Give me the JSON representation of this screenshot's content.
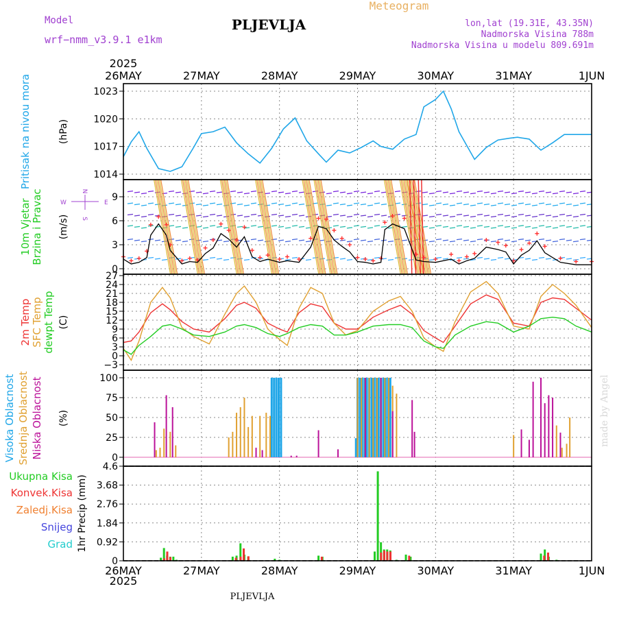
{
  "header": {
    "model_label": "Model",
    "model_name": "wrf−nmm_v3.9.1  e1km",
    "station": "PLJEVLJA",
    "product": "Meteogram",
    "lonlat": "lon,lat (19.31E, 43.35N)",
    "altitude": "Nadmorska Visina 788m",
    "model_altitude": "Nadmorska Visina u modelu 809.691m",
    "footer_station": "PLJEVLJA",
    "credit": "made by Angel",
    "year_top": "2025",
    "year_bottom": "2025"
  },
  "colors": {
    "pressure": "#1fa6e8",
    "wind": "#000000",
    "gust": "#ff3333",
    "t2m": "#ee3333",
    "sfc": "#e0a030",
    "dewpt": "#22cc22",
    "cloud_high": "#1fa6e8",
    "cloud_mid": "#e0a030",
    "cloud_low": "#bb1199",
    "precip": "#22cc22",
    "conv": "#ee3333",
    "grid": "#888888",
    "header_purple": "#a040d0",
    "header_gold": "#e8b060"
  },
  "chart_data": [
    {
      "type": "line",
      "name": "pressure",
      "ylabels": [
        "Pritisak na nivou mora"
      ],
      "unit": "(hPa)",
      "ylim": [
        1014,
        1024
      ],
      "ticks": [
        1014,
        1017,
        1020,
        1023
      ],
      "x_day": [
        0,
        0.1,
        0.2,
        0.3,
        0.45,
        0.6,
        0.75,
        0.9,
        1.0,
        1.15,
        1.3,
        1.45,
        1.6,
        1.75,
        1.9,
        2.05,
        2.2,
        2.35,
        2.5,
        2.6,
        2.75,
        2.9,
        3.05,
        3.2,
        3.3,
        3.45,
        3.6,
        3.75,
        3.85,
        4.0,
        4.1,
        4.2,
        4.3,
        4.5,
        4.65,
        4.8,
        4.95,
        5.05,
        5.2,
        5.35,
        5.5,
        5.65,
        5.8,
        6.0
      ],
      "series": [
        {
          "values": [
            1015.9,
            1017.5,
            1018.6,
            1016.8,
            1014.6,
            1014.3,
            1014.8,
            1016.9,
            1018.4,
            1018.6,
            1019.1,
            1017.4,
            1016.2,
            1015.2,
            1016.8,
            1018.9,
            1020.1,
            1017.6,
            1016.2,
            1015.3,
            1016.6,
            1016.3,
            1016.9,
            1017.6,
            1017.0,
            1016.7,
            1017.8,
            1018.3,
            1021.3,
            1022.1,
            1023.0,
            1021.1,
            1018.6,
            1015.6,
            1016.9,
            1017.7,
            1017.9,
            1018.0,
            1017.8,
            1016.6,
            1017.4,
            1018.3,
            1018.3,
            1018.3
          ]
        }
      ]
    },
    {
      "type": "line",
      "name": "wind",
      "ylabels": [
        "10m Vjetar",
        "Brzina i Pravac"
      ],
      "unit": "(m/s)",
      "ylim": [
        -0.6,
        11.3
      ],
      "ticks": [
        0,
        3,
        6,
        9
      ],
      "compass": [
        "W",
        "E",
        "N",
        "S"
      ],
      "x_day": [
        0,
        0.1,
        0.2,
        0.3,
        0.35,
        0.45,
        0.55,
        0.6,
        0.75,
        0.85,
        0.95,
        1.05,
        1.15,
        1.25,
        1.35,
        1.45,
        1.55,
        1.65,
        1.75,
        1.85,
        2.0,
        2.1,
        2.25,
        2.4,
        2.5,
        2.6,
        2.7,
        2.8,
        2.9,
        3.0,
        3.1,
        3.2,
        3.3,
        3.35,
        3.45,
        3.6,
        3.75,
        3.85,
        4.0,
        4.2,
        4.3,
        4.4,
        4.5,
        4.65,
        4.8,
        4.9,
        5.0,
        5.1,
        5.2,
        5.3,
        5.4,
        5.6,
        5.8,
        6.0
      ],
      "series": [
        {
          "name": "wind",
          "values": [
            1.2,
            0.6,
            0.8,
            1.4,
            4.2,
            5.6,
            4.2,
            2.3,
            0.6,
            0.9,
            0.8,
            1.9,
            2.6,
            4.4,
            3.7,
            2.7,
            4.0,
            1.5,
            0.9,
            1.2,
            0.8,
            1.0,
            0.8,
            2.7,
            5.3,
            5.0,
            3.6,
            2.8,
            2.1,
            0.9,
            0.8,
            0.6,
            0.8,
            4.9,
            5.6,
            5.0,
            1.1,
            0.9,
            0.8,
            1.2,
            0.6,
            1.0,
            1.3,
            2.7,
            2.4,
            2.1,
            0.6,
            1.7,
            2.3,
            3.5,
            2.0,
            0.8,
            0.5,
            0.5
          ]
        },
        {
          "name": "gust",
          "values": [
            1.5,
            1.0,
            1.3,
            2.2,
            5.5,
            6.5,
            5.5,
            3.0,
            1.0,
            1.3,
            1.1,
            2.6,
            3.6,
            5.6,
            4.8,
            3.6,
            5.2,
            2.3,
            1.4,
            1.7,
            1.2,
            1.5,
            1.2,
            3.8,
            6.3,
            6.2,
            4.8,
            3.8,
            3.0,
            1.4,
            1.2,
            1.0,
            1.3,
            5.8,
            6.6,
            6.3,
            1.8,
            1.4,
            1.2,
            1.8,
            1.0,
            1.5,
            1.9,
            3.6,
            3.3,
            2.9,
            1.0,
            2.4,
            3.2,
            4.4,
            2.8,
            1.3,
            0.9,
            0.9
          ]
        }
      ]
    },
    {
      "type": "line",
      "name": "temperature",
      "ylabels": [
        "2m Temp",
        "SFC Temp",
        "dewpt Temp"
      ],
      "unit": "(C)",
      "ylim": [
        -4.5,
        27
      ],
      "ticks": [
        -3,
        0,
        3,
        6,
        9,
        12,
        15,
        18,
        21,
        24,
        27
      ],
      "x_day": [
        0,
        0.1,
        0.2,
        0.35,
        0.5,
        0.6,
        0.75,
        0.9,
        1.1,
        1.3,
        1.45,
        1.55,
        1.7,
        1.85,
        2.0,
        2.1,
        2.25,
        2.4,
        2.55,
        2.7,
        2.85,
        3.0,
        3.2,
        3.4,
        3.55,
        3.7,
        3.85,
        4.0,
        4.1,
        4.25,
        4.45,
        4.65,
        4.8,
        5.0,
        5.2,
        5.35,
        5.5,
        5.65,
        5.8,
        6.0
      ],
      "series": [
        {
          "name": "2m Temp",
          "values": [
            4.5,
            5.0,
            8.0,
            14.5,
            17.5,
            15.5,
            11.5,
            9.0,
            8.0,
            12.5,
            17.0,
            18.0,
            16.0,
            11.0,
            9.0,
            8.0,
            14.5,
            17.5,
            16.5,
            11.0,
            9.0,
            9.0,
            13.0,
            15.5,
            17.0,
            14.0,
            8.5,
            6.0,
            4.5,
            10.0,
            17.5,
            20.5,
            19.0,
            11.0,
            10.0,
            18.0,
            19.5,
            19.0,
            16.0,
            12.0
          ]
        },
        {
          "name": "SFC Temp",
          "values": [
            2.5,
            -1.5,
            5.0,
            18.0,
            23.0,
            19.5,
            9.5,
            6.5,
            4.0,
            14.0,
            21.0,
            23.5,
            18.0,
            9.0,
            5.5,
            3.5,
            16.0,
            23.0,
            21.0,
            11.0,
            7.0,
            8.5,
            15.0,
            18.5,
            20.0,
            15.0,
            6.0,
            3.0,
            1.5,
            11.5,
            21.5,
            25.0,
            21.0,
            10.0,
            9.0,
            20.0,
            24.0,
            21.0,
            17.0,
            9.5
          ]
        },
        {
          "name": "dewpt Temp",
          "values": [
            2.0,
            0.5,
            3.5,
            6.5,
            10.0,
            10.5,
            9.0,
            7.0,
            6.5,
            8.0,
            10.0,
            10.5,
            9.5,
            7.5,
            6.5,
            7.5,
            9.5,
            10.5,
            10.0,
            7.0,
            7.0,
            8.0,
            10.0,
            10.5,
            10.5,
            9.5,
            5.0,
            3.0,
            2.5,
            7.0,
            10.0,
            11.5,
            11.0,
            8.0,
            10.0,
            12.5,
            13.0,
            12.5,
            10.0,
            8.0
          ]
        }
      ]
    },
    {
      "type": "bar",
      "name": "clouds",
      "ylabels": [
        "Visoka Oblacnost",
        "Srednja Oblacnost",
        "Niska Oblacnost"
      ],
      "unit": "(%)",
      "ylim": [
        0,
        100
      ],
      "ticks": [
        0,
        25,
        50,
        75,
        100
      ],
      "series": [
        {
          "name": "Visoka Oblacnost",
          "x_day": [
            1.9,
            1.93,
            1.96,
            1.99,
            2.02,
            2.98,
            3.0,
            3.03,
            3.06,
            3.09,
            3.12,
            3.15,
            3.18,
            3.21,
            3.24,
            3.27,
            3.3,
            3.33,
            3.36,
            3.39,
            3.42
          ],
          "values": [
            100,
            100,
            100,
            100,
            100,
            24,
            100,
            100,
            100,
            100,
            100,
            100,
            100,
            100,
            100,
            100,
            100,
            100,
            100,
            100,
            100
          ]
        },
        {
          "name": "Srednja Oblacnost",
          "x_day": [
            0.42,
            0.47,
            0.52,
            0.6,
            0.67,
            1.35,
            1.4,
            1.45,
            1.5,
            1.55,
            1.6,
            1.65,
            1.75,
            1.83,
            1.88,
            3.0,
            3.05,
            3.1,
            3.15,
            3.2,
            3.25,
            3.3,
            3.35,
            3.4,
            3.45,
            3.5,
            5.0,
            5.55,
            5.62,
            5.68,
            5.72
          ],
          "values": [
            9,
            12,
            36,
            32,
            15,
            25,
            32,
            56,
            63,
            75,
            38,
            52,
            52,
            56,
            52,
            100,
            100,
            100,
            100,
            100,
            100,
            100,
            100,
            100,
            90,
            80,
            28,
            40,
            12,
            17,
            50
          ]
        },
        {
          "name": "Niska Oblacnost",
          "x_day": [
            0.4,
            0.55,
            0.63,
            1.7,
            1.78,
            2.15,
            2.22,
            2.5,
            2.75,
            3.1,
            3.3,
            3.45,
            3.7,
            3.73,
            5.1,
            5.2,
            5.25,
            5.35,
            5.4,
            5.45,
            5.5,
            5.6
          ],
          "values": [
            44,
            78,
            63,
            12,
            9,
            2,
            2,
            34,
            10,
            100,
            100,
            58,
            72,
            32,
            35,
            22,
            95,
            100,
            68,
            78,
            75,
            31
          ]
        }
      ]
    },
    {
      "type": "bar",
      "name": "precip",
      "ylabels": [
        "Ukupna Kisa",
        "Konvek.Kisa",
        "Zaledj.Kisa",
        "Snijeg",
        "Grad"
      ],
      "ylabel_colors": [
        "#22cc22",
        "#ee3333",
        "#f08030",
        "#4444dd",
        "#22cccc"
      ],
      "unit": "1hr Precip (mm)",
      "ylim": [
        0,
        4.6
      ],
      "ticks": [
        0,
        0.92,
        1.84,
        2.76,
        3.68,
        4.6
      ],
      "tick_labels": [
        "0",
        "0.92",
        "1.84",
        "2.76",
        "3.68",
        "4.6"
      ],
      "series": [
        {
          "name": "Ukupna Kisa",
          "x_day": [
            0.48,
            0.52,
            0.56,
            0.6,
            0.64,
            0.68,
            1.4,
            1.45,
            1.5,
            1.55,
            1.6,
            1.94,
            2.0,
            2.5,
            2.55,
            3.22,
            3.26,
            3.3,
            3.34,
            3.38,
            3.42,
            3.5,
            3.62,
            3.68,
            5.35,
            5.4,
            5.45,
            5.55
          ],
          "values": [
            0.15,
            0.62,
            0.25,
            0.2,
            0.2,
            0.05,
            0.2,
            0.25,
            0.85,
            0.3,
            0.2,
            0.1,
            0.05,
            0.25,
            0.2,
            0.45,
            4.35,
            0.9,
            0.55,
            0.55,
            0.5,
            0.05,
            0.3,
            0.2,
            0.35,
            0.55,
            0.2,
            0.05
          ]
        },
        {
          "name": "Konvek.Kisa",
          "x_day": [
            0.5,
            0.54,
            0.58,
            1.42,
            1.48,
            1.52,
            1.58,
            2.52,
            3.28,
            3.32,
            3.36,
            3.4,
            3.64,
            5.37,
            5.42
          ],
          "values": [
            0.12,
            0.45,
            0.18,
            0.15,
            0.2,
            0.6,
            0.22,
            0.2,
            0.4,
            0.5,
            0.45,
            0.45,
            0.25,
            0.25,
            0.4
          ]
        }
      ]
    }
  ],
  "x_axis": {
    "labels": [
      "26MAY",
      "27MAY",
      "28MAY",
      "29MAY",
      "30MAY",
      "31MAY",
      "1JUN"
    ],
    "days": [
      0,
      1,
      2,
      3,
      4,
      5,
      6
    ]
  }
}
